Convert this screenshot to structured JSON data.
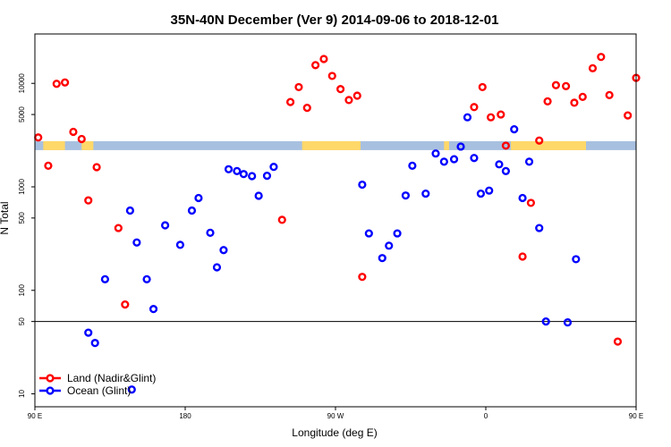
{
  "chart_data": {
    "type": "scatter",
    "title": "35N-40N December (Ver 9)   2014-09-06 to 2018-12-01",
    "xlabel": "Longitude (deg E)",
    "ylabel": "N Total",
    "xlim": [
      90,
      450
    ],
    "ylim_log": [
      7.5,
      30000
    ],
    "y_scale": "log",
    "x_ticks": [
      {
        "value": 90,
        "label": "90 E"
      },
      {
        "value": 180,
        "label": "180"
      },
      {
        "value": 270,
        "label": "90 W"
      },
      {
        "value": 360,
        "label": "0"
      },
      {
        "value": 450,
        "label": "90 E"
      },
      {
        "value": 540,
        "label": "180"
      }
    ],
    "y_ticks": [
      {
        "value": 10,
        "label": "10"
      },
      {
        "value": 50,
        "label": "50"
      },
      {
        "value": 100,
        "label": "100"
      },
      {
        "value": 500,
        "label": "500"
      },
      {
        "value": 1000,
        "label": "1000"
      },
      {
        "value": 5000,
        "label": "5000"
      },
      {
        "value": 10000,
        "label": "10000"
      }
    ],
    "reference_line": 50,
    "land_ocean_band_y": 2500,
    "legend_position": "bottom-left",
    "series": [
      {
        "name": "Land (Nadir&Glint)",
        "color": "#ff0000",
        "points": [
          [
            92,
            3000
          ],
          [
            98,
            1600
          ],
          [
            103,
            9900
          ],
          [
            108,
            10200
          ],
          [
            113,
            3400
          ],
          [
            118,
            2900
          ],
          [
            122,
            740
          ],
          [
            127,
            1550
          ],
          [
            140,
            400
          ],
          [
            144,
            73
          ],
          [
            238,
            480
          ],
          [
            243,
            6600
          ],
          [
            248,
            9200
          ],
          [
            253,
            5800
          ],
          [
            258,
            15000
          ],
          [
            263,
            17200
          ],
          [
            268,
            11800
          ],
          [
            273,
            8800
          ],
          [
            278,
            6900
          ],
          [
            283,
            7600
          ],
          [
            286,
            135
          ],
          [
            353,
            5900
          ],
          [
            358,
            9200
          ],
          [
            363,
            4700
          ],
          [
            369,
            5000
          ],
          [
            372,
            2500
          ],
          [
            382,
            212
          ],
          [
            387,
            700
          ],
          [
            392,
            2800
          ],
          [
            397,
            6700
          ],
          [
            402,
            9600
          ],
          [
            408,
            9400
          ],
          [
            413,
            6500
          ],
          [
            418,
            7400
          ],
          [
            424,
            14000
          ],
          [
            429,
            18000
          ],
          [
            434,
            7700
          ],
          [
            439,
            32
          ],
          [
            445,
            4900
          ],
          [
            450,
            11300
          ]
        ]
      },
      {
        "name": "Ocean (Glint)",
        "color": "#0000ff",
        "points": [
          [
            122,
            39
          ],
          [
            126,
            31
          ],
          [
            132,
            128
          ],
          [
            147,
            590
          ],
          [
            151,
            290
          ],
          [
            157,
            128
          ],
          [
            161,
            66
          ],
          [
            168,
            425
          ],
          [
            177,
            275
          ],
          [
            184,
            590
          ],
          [
            188,
            780
          ],
          [
            195,
            360
          ],
          [
            199,
            167
          ],
          [
            203,
            245
          ],
          [
            206,
            1480
          ],
          [
            211,
            1420
          ],
          [
            215,
            1330
          ],
          [
            220,
            1270
          ],
          [
            224,
            820
          ],
          [
            229,
            1280
          ],
          [
            233,
            1560
          ],
          [
            148,
            11
          ],
          [
            286,
            1050
          ],
          [
            290,
            355
          ],
          [
            298,
            205
          ],
          [
            302,
            270
          ],
          [
            307,
            355
          ],
          [
            312,
            825
          ],
          [
            316,
            1600
          ],
          [
            324,
            860
          ],
          [
            330,
            2100
          ],
          [
            335,
            1750
          ],
          [
            341,
            1850
          ],
          [
            345,
            2450
          ],
          [
            349,
            4700
          ],
          [
            353,
            1900
          ],
          [
            357,
            860
          ],
          [
            362,
            920
          ],
          [
            368,
            1650
          ],
          [
            372,
            1420
          ],
          [
            377,
            3600
          ],
          [
            382,
            780
          ],
          [
            386,
            1750
          ],
          [
            392,
            400
          ],
          [
            396,
            50
          ],
          [
            409,
            49
          ],
          [
            414,
            200
          ]
        ]
      }
    ]
  }
}
